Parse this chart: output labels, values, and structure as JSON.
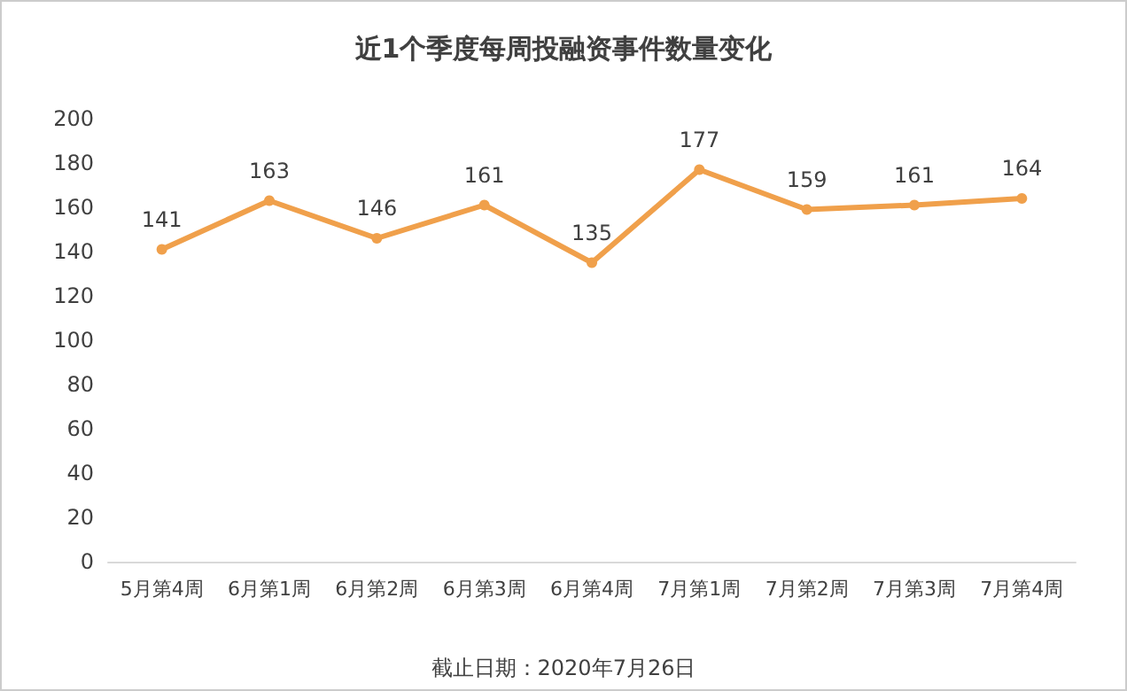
{
  "chart_data": {
    "type": "line",
    "title": "近1个季度每周投融资事件数量变化",
    "categories": [
      "5月第4周",
      "6月第1周",
      "6月第2周",
      "6月第3周",
      "6月第4周",
      "7月第1周",
      "7月第2周",
      "7月第3周",
      "7月第4周"
    ],
    "series": [
      {
        "color": "#f0a04b",
        "values": [
          141,
          163,
          146,
          161,
          135,
          177,
          159,
          161,
          164
        ]
      }
    ],
    "ylim": [
      0,
      200
    ],
    "yticks": [
      0,
      20,
      40,
      60,
      80,
      100,
      120,
      140,
      160,
      180,
      200
    ],
    "grid": false,
    "marker": "circle",
    "line_style": "solid",
    "data_labels": true,
    "annotations": [
      "截止日期：2020年7月26日"
    ]
  }
}
